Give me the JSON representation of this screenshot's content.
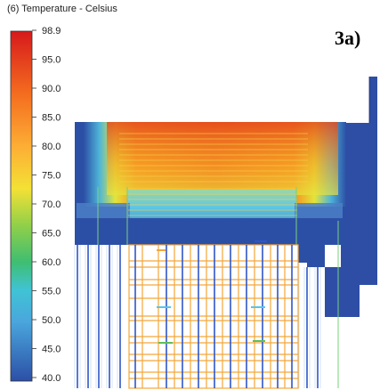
{
  "legend": {
    "title": "(6) Temperature - Celsius",
    "max_value": "98.9",
    "ticks": [
      "95.0",
      "90.0",
      "85.0",
      "80.0",
      "75.0",
      "70.0",
      "65.0",
      "60.0",
      "55.0",
      "50.0",
      "45.0",
      "40.0"
    ]
  },
  "figure_label": "3a)",
  "colors": {
    "hot": "#e0421c",
    "warm": "#f7a81c",
    "mid": "#cfe24a",
    "green": "#5cbf5a",
    "cool": "#56c6e6",
    "cold": "#2c4fa6",
    "mesh_orange": "#f4a63a",
    "mesh_blue": "#2f56c6",
    "mesh_green": "#7ad07a"
  }
}
